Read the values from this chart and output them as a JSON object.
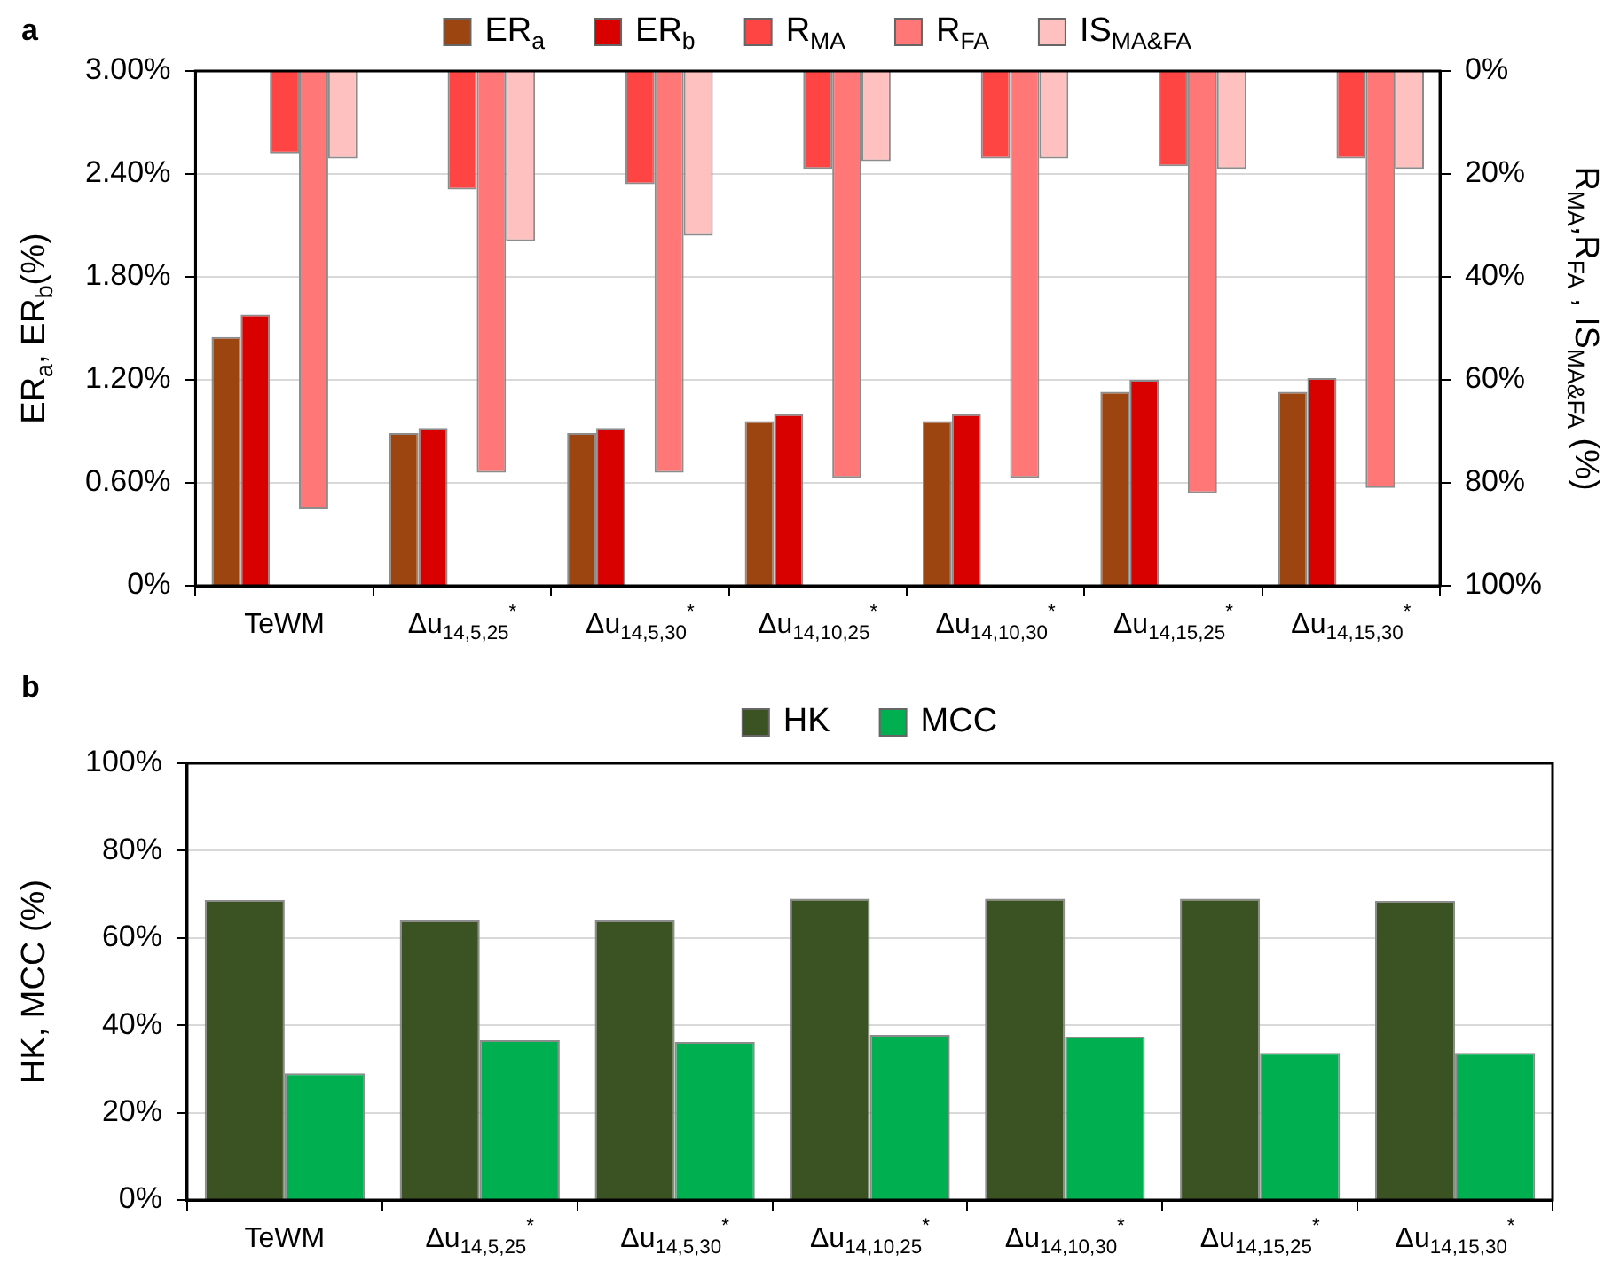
{
  "chart_data": [
    {
      "type": "bar",
      "title": "a",
      "categories": [
        "TeWM",
        "Δu$_{14,5,25}$$^{*}$",
        "Δu$_{14,5,30}$$^{*}$",
        "Δu$_{14,10,25}$$^{*}$",
        "Δu$_{14,10,30}$$^{*}$",
        "Δu$_{14,15,25}$$^{*}$",
        "Δu$_{14,15,30}$$^{*}$"
      ],
      "series": [
        {
          "name": "ER$_{a}$",
          "color": "#9c4510",
          "values": [
            1.45,
            0.89,
            0.89,
            0.96,
            0.96,
            1.13,
            1.13
          ]
        },
        {
          "name": "ER$_{b}$",
          "color": "#d90000",
          "values": [
            1.58,
            0.92,
            0.92,
            1.0,
            1.0,
            1.2,
            1.21
          ]
        },
        {
          "name": "R$_{MA}$",
          "color": "#ff4444",
          "axis": "y2",
          "values": [
            16,
            23,
            22,
            19,
            17,
            18.5,
            17
          ]
        },
        {
          "name": "R$_{FA}$",
          "color": "#ff7777",
          "axis": "y2",
          "values": [
            85,
            78,
            78,
            79,
            79,
            82,
            81
          ]
        },
        {
          "name": "IS$_{MA&FA}$",
          "color": "#ffc0c0",
          "axis": "y2",
          "values": [
            17,
            33,
            32,
            17.5,
            17,
            19,
            19
          ]
        }
      ],
      "ylabel": "ER$_{a}$, ER$_{b}$(%)",
      "y2label": "R$_{MA}$,R$_{FA}$ , IS$_{MA&FA}$ (%)",
      "ylim": [
        0,
        3
      ],
      "yticks": [
        {
          "value": 0,
          "label": "0%"
        },
        {
          "value": 0.6,
          "label": "0.60%"
        },
        {
          "value": 1.2,
          "label": "1.20%"
        },
        {
          "value": 1.8,
          "label": "1.80%"
        },
        {
          "value": 2.4,
          "label": "2.40%"
        },
        {
          "value": 3,
          "label": "3.00%"
        }
      ],
      "y2lim": [
        100,
        0
      ],
      "y2ticks": [
        {
          "value": 0,
          "label": "0%"
        },
        {
          "value": 20,
          "label": "20%"
        },
        {
          "value": 40,
          "label": "40%"
        },
        {
          "value": 60,
          "label": "60%"
        },
        {
          "value": 80,
          "label": "80%"
        },
        {
          "value": 100,
          "label": "100%"
        }
      ],
      "grid": "y",
      "legend": "top"
    },
    {
      "type": "bar",
      "title": "b",
      "categories": [
        "TeWM",
        "Δu$_{14,5,25}$$^{*}$",
        "Δu$_{14,5,30}$$^{*}$",
        "Δu$_{14,10,25}$$^{*}$",
        "Δu$_{14,10,30}$$^{*}$",
        "Δu$_{14,15,25}$$^{*}$",
        "Δu$_{14,15,30}$$^{*}$"
      ],
      "series": [
        {
          "name": "HK",
          "color": "#3b5323",
          "values": [
            68.7,
            64,
            64,
            69,
            69,
            69,
            68.5
          ]
        },
        {
          "name": "MCC",
          "color": "#00b050",
          "values": [
            29,
            36.6,
            36.2,
            37.8,
            37.4,
            33.7,
            33.7
          ]
        }
      ],
      "ylabel": "HK, MCC (%)",
      "ylim": [
        0,
        100
      ],
      "yticks": [
        {
          "value": 0,
          "label": "0%"
        },
        {
          "value": 20,
          "label": "20%"
        },
        {
          "value": 40,
          "label": "40%"
        },
        {
          "value": 60,
          "label": "60%"
        },
        {
          "value": 80,
          "label": "80%"
        },
        {
          "value": 100,
          "label": "100%"
        }
      ],
      "grid": "y",
      "legend": "top"
    }
  ]
}
